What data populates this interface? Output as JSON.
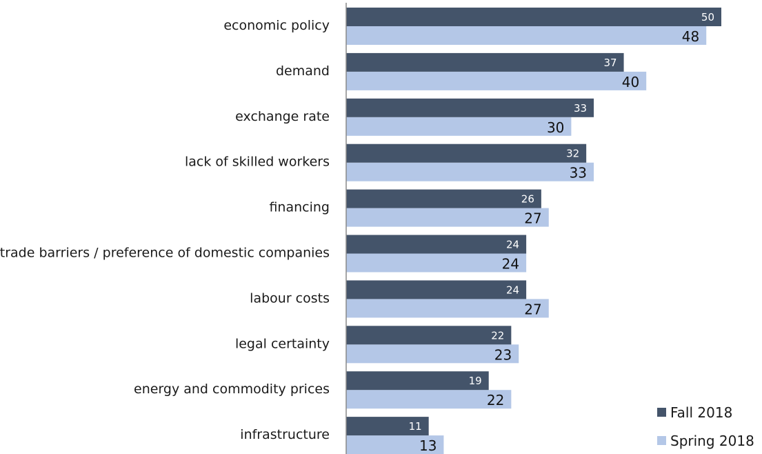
{
  "chart_data": {
    "type": "bar",
    "orientation": "horizontal",
    "categories": [
      "economic policy",
      "demand",
      "exchange rate",
      "lack of skilled workers",
      "financing",
      "trade barriers / preference of domestic companies",
      "labour costs",
      "legal certainty",
      "energy and commodity prices",
      "infrastructure"
    ],
    "series": [
      {
        "name": "Fall 2018",
        "color": "#44546a",
        "values": [
          50,
          37,
          33,
          32,
          26,
          24,
          24,
          22,
          19,
          11
        ]
      },
      {
        "name": "Spring 2018",
        "color": "#b4c7e7",
        "values": [
          48,
          40,
          30,
          33,
          27,
          24,
          27,
          23,
          22,
          13
        ]
      }
    ],
    "xlim": [
      0,
      50
    ],
    "data_labels": true,
    "grid": false,
    "legend_position": "bottom-right"
  }
}
